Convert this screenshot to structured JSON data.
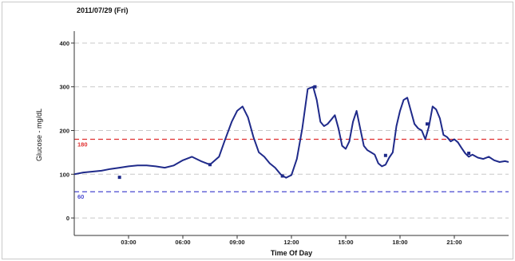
{
  "chart_data": {
    "type": "line",
    "title": "2011/07/29 (Fri)",
    "xlabel": "Time Of Day",
    "ylabel": "Glucose - mg/dL",
    "xlim": [
      0,
      24
    ],
    "ylim": [
      -40,
      420
    ],
    "y_ticks": [
      0,
      100,
      200,
      300,
      400
    ],
    "x_ticks": [
      {
        "value": 3,
        "label": "03:00"
      },
      {
        "value": 6,
        "label": "06:00"
      },
      {
        "value": 9,
        "label": "09:00"
      },
      {
        "value": 12,
        "label": "12:00"
      },
      {
        "value": 15,
        "label": "15:00"
      },
      {
        "value": 18,
        "label": "18:00"
      },
      {
        "value": 21,
        "label": "21:00"
      }
    ],
    "grid": "horizontal dashed",
    "thresholds": [
      {
        "name": "high",
        "value": 180,
        "label": "180",
        "color": "#e03030"
      },
      {
        "name": "low",
        "value": 60,
        "label": "60",
        "color": "#4a4ad0"
      }
    ],
    "series": [
      {
        "color": "#1f2a8a",
        "x": [
          0,
          0.5,
          1,
          1.5,
          2,
          2.5,
          3,
          3.5,
          4,
          4.5,
          5,
          5.5,
          6,
          6.5,
          7,
          7.5,
          8,
          8.3,
          8.7,
          9,
          9.3,
          9.6,
          9.9,
          10.2,
          10.5,
          10.8,
          11.1,
          11.4,
          11.7,
          12,
          12.3,
          12.6,
          12.9,
          13.2,
          13.4,
          13.6,
          13.8,
          14,
          14.2,
          14.4,
          14.6,
          14.8,
          15,
          15.2,
          15.4,
          15.6,
          15.8,
          16,
          16.2,
          16.4,
          16.6,
          16.8,
          17,
          17.2,
          17.4,
          17.6,
          17.8,
          18,
          18.2,
          18.4,
          18.6,
          18.8,
          19,
          19.2,
          19.4,
          19.6,
          19.8,
          20,
          20.2,
          20.4,
          20.6,
          20.8,
          21,
          21.2,
          21.4,
          21.6,
          21.8,
          22,
          22.3,
          22.6,
          22.9,
          23.2,
          23.5,
          23.8,
          24
        ],
        "y": [
          100,
          104,
          106,
          108,
          112,
          115,
          118,
          120,
          120,
          118,
          115,
          120,
          132,
          140,
          130,
          122,
          140,
          175,
          220,
          245,
          255,
          230,
          185,
          150,
          140,
          125,
          115,
          100,
          92,
          98,
          135,
          205,
          295,
          300,
          270,
          220,
          210,
          215,
          225,
          235,
          205,
          165,
          158,
          175,
          220,
          245,
          205,
          165,
          155,
          150,
          145,
          125,
          118,
          122,
          138,
          150,
          210,
          245,
          270,
          275,
          245,
          215,
          205,
          200,
          180,
          210,
          255,
          248,
          228,
          190,
          185,
          175,
          180,
          173,
          160,
          148,
          140,
          145,
          138,
          135,
          140,
          132,
          128,
          130,
          128
        ]
      }
    ],
    "markers": [
      {
        "x": 2.5,
        "y": 93
      },
      {
        "x": 7.5,
        "y": 122
      },
      {
        "x": 11.5,
        "y": 96
      },
      {
        "x": 13.3,
        "y": 300
      },
      {
        "x": 17.2,
        "y": 143
      },
      {
        "x": 19.5,
        "y": 215
      },
      {
        "x": 21.8,
        "y": 148
      }
    ]
  }
}
